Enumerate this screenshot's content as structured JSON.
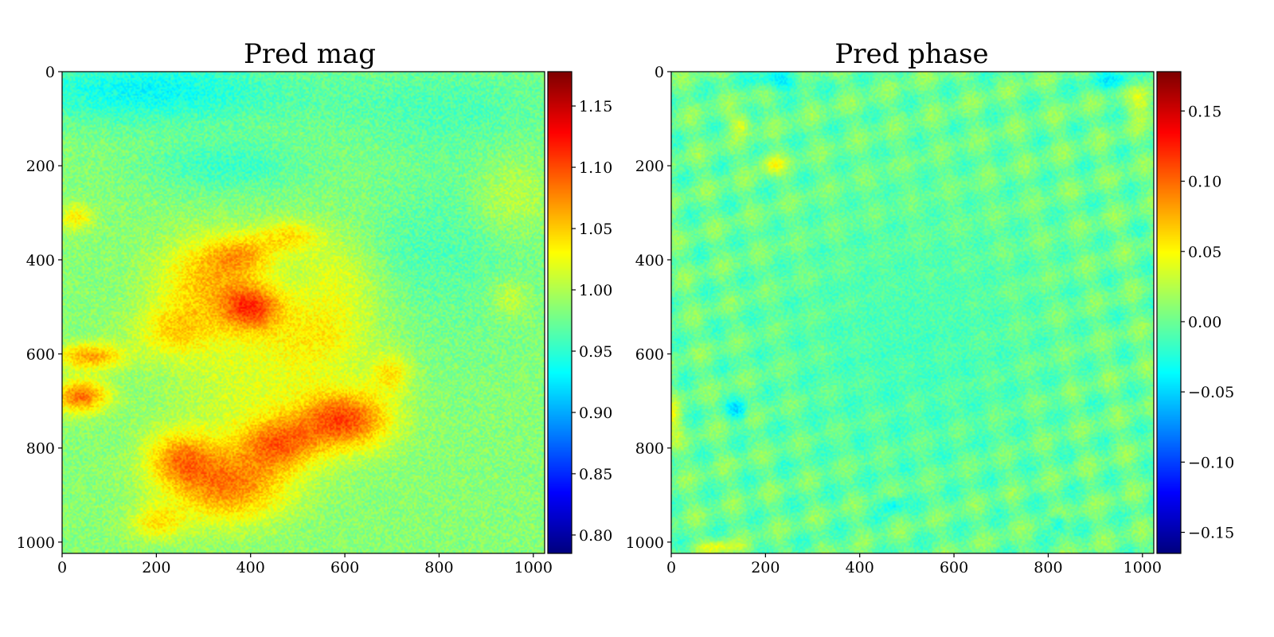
{
  "figure": {
    "background": "#ffffff",
    "colormap": "jet"
  },
  "chart_data": [
    {
      "type": "heatmap",
      "title": "Pred mag",
      "xlabel": "",
      "ylabel": "",
      "xlim": [
        0,
        1024
      ],
      "ylim": [
        1024,
        0
      ],
      "x_ticks": [
        0,
        200,
        400,
        600,
        800,
        1000
      ],
      "y_ticks": [
        0,
        200,
        400,
        600,
        800,
        1000
      ],
      "x_tick_labels": [
        "0",
        "200",
        "400",
        "600",
        "800",
        "1000"
      ],
      "y_tick_labels": [
        "0",
        "200",
        "400",
        "600",
        "800",
        "1000"
      ],
      "colorbar": {
        "vmin": 0.785,
        "vmax": 1.178,
        "ticks": [
          0.8,
          0.85,
          0.9,
          0.95,
          1.0,
          1.05,
          1.1,
          1.15
        ],
        "tick_labels": [
          "0.80",
          "0.85",
          "0.90",
          "0.95",
          "1.00",
          "1.05",
          "1.10",
          "1.15"
        ]
      },
      "baseline": 0.985,
      "noise_amplitude": 0.018,
      "features": [
        {
          "x": 400,
          "y": 500,
          "sx": 45,
          "sy": 35,
          "v": 0.1
        },
        {
          "x": 600,
          "y": 740,
          "sx": 70,
          "sy": 45,
          "v": 0.11
        },
        {
          "x": 350,
          "y": 880,
          "sx": 90,
          "sy": 55,
          "v": 0.09
        },
        {
          "x": 460,
          "y": 790,
          "sx": 60,
          "sy": 40,
          "v": 0.08
        },
        {
          "x": 250,
          "y": 820,
          "sx": 50,
          "sy": 40,
          "v": 0.07
        },
        {
          "x": 40,
          "y": 690,
          "sx": 40,
          "sy": 25,
          "v": 0.1
        },
        {
          "x": 60,
          "y": 605,
          "sx": 50,
          "sy": 20,
          "v": 0.08
        },
        {
          "x": 300,
          "y": 440,
          "sx": 70,
          "sy": 60,
          "v": 0.06
        },
        {
          "x": 380,
          "y": 390,
          "sx": 50,
          "sy": 30,
          "v": 0.06
        },
        {
          "x": 480,
          "y": 350,
          "sx": 50,
          "sy": 25,
          "v": 0.05
        },
        {
          "x": 550,
          "y": 560,
          "sx": 80,
          "sy": 60,
          "v": 0.04
        },
        {
          "x": 240,
          "y": 550,
          "sx": 60,
          "sy": 40,
          "v": 0.05
        },
        {
          "x": 600,
          "y": 430,
          "sx": 80,
          "sy": 60,
          "v": 0.03
        },
        {
          "x": 200,
          "y": 960,
          "sx": 40,
          "sy": 25,
          "v": 0.05
        },
        {
          "x": 700,
          "y": 640,
          "sx": 30,
          "sy": 30,
          "v": 0.05
        },
        {
          "x": 30,
          "y": 310,
          "sx": 25,
          "sy": 20,
          "v": 0.05
        },
        {
          "x": 950,
          "y": 270,
          "sx": 60,
          "sy": 60,
          "v": 0.03
        },
        {
          "x": 950,
          "y": 480,
          "sx": 30,
          "sy": 30,
          "v": 0.03
        },
        {
          "x": 400,
          "y": 650,
          "sx": 120,
          "sy": 120,
          "v": 0.03
        },
        {
          "x": 180,
          "y": 40,
          "sx": 200,
          "sy": 50,
          "v": -0.05
        },
        {
          "x": 350,
          "y": 200,
          "sx": 120,
          "sy": 40,
          "v": -0.03
        },
        {
          "x": 800,
          "y": 70,
          "sx": 200,
          "sy": 60,
          "v": -0.02
        },
        {
          "x": 850,
          "y": 350,
          "sx": 120,
          "sy": 150,
          "v": -0.02
        },
        {
          "x": 700,
          "y": 400,
          "sx": 60,
          "sy": 60,
          "v": -0.015
        }
      ]
    },
    {
      "type": "heatmap",
      "title": "Pred phase",
      "xlabel": "",
      "ylabel": "",
      "xlim": [
        0,
        1024
      ],
      "ylim": [
        1024,
        0
      ],
      "x_ticks": [
        0,
        200,
        400,
        600,
        800,
        1000
      ],
      "y_ticks": [
        0,
        200,
        400,
        600,
        800,
        1000
      ],
      "x_tick_labels": [
        "0",
        "200",
        "400",
        "600",
        "800",
        "1000"
      ],
      "y_tick_labels": [
        "0",
        "200",
        "400",
        "600",
        "800",
        "1000"
      ],
      "colorbar": {
        "vmin": -0.165,
        "vmax": 0.178,
        "ticks": [
          -0.15,
          -0.1,
          -0.05,
          0.0,
          0.05,
          0.1,
          0.15
        ],
        "tick_labels": [
          "−0.15",
          "−0.10",
          "−0.05",
          "0.00",
          "0.05",
          "0.10",
          "0.15"
        ]
      },
      "baseline": 0.0,
      "noise_amplitude": 0.012,
      "ripple_amplitude": 0.018,
      "ripple_wavelength": 45,
      "features": [
        {
          "x": 150,
          "y": 110,
          "sx": 15,
          "sy": 15,
          "v": 0.04
        },
        {
          "x": 215,
          "y": 195,
          "sx": 20,
          "sy": 15,
          "v": 0.04
        },
        {
          "x": 100,
          "y": 1010,
          "sx": 30,
          "sy": 10,
          "v": 0.04
        },
        {
          "x": 0,
          "y": 740,
          "sx": 15,
          "sy": 30,
          "v": 0.04
        },
        {
          "x": 500,
          "y": 600,
          "sx": 200,
          "sy": 200,
          "v": -0.012
        },
        {
          "x": 230,
          "y": 20,
          "sx": 40,
          "sy": 15,
          "v": -0.04
        },
        {
          "x": 950,
          "y": 20,
          "sx": 50,
          "sy": 15,
          "v": -0.03
        },
        {
          "x": 140,
          "y": 720,
          "sx": 15,
          "sy": 15,
          "v": -0.04
        },
        {
          "x": 820,
          "y": 960,
          "sx": 12,
          "sy": 12,
          "v": -0.04
        },
        {
          "x": 470,
          "y": 920,
          "sx": 15,
          "sy": 12,
          "v": -0.035
        },
        {
          "x": 1000,
          "y": 60,
          "sx": 20,
          "sy": 30,
          "v": 0.04
        }
      ]
    }
  ]
}
